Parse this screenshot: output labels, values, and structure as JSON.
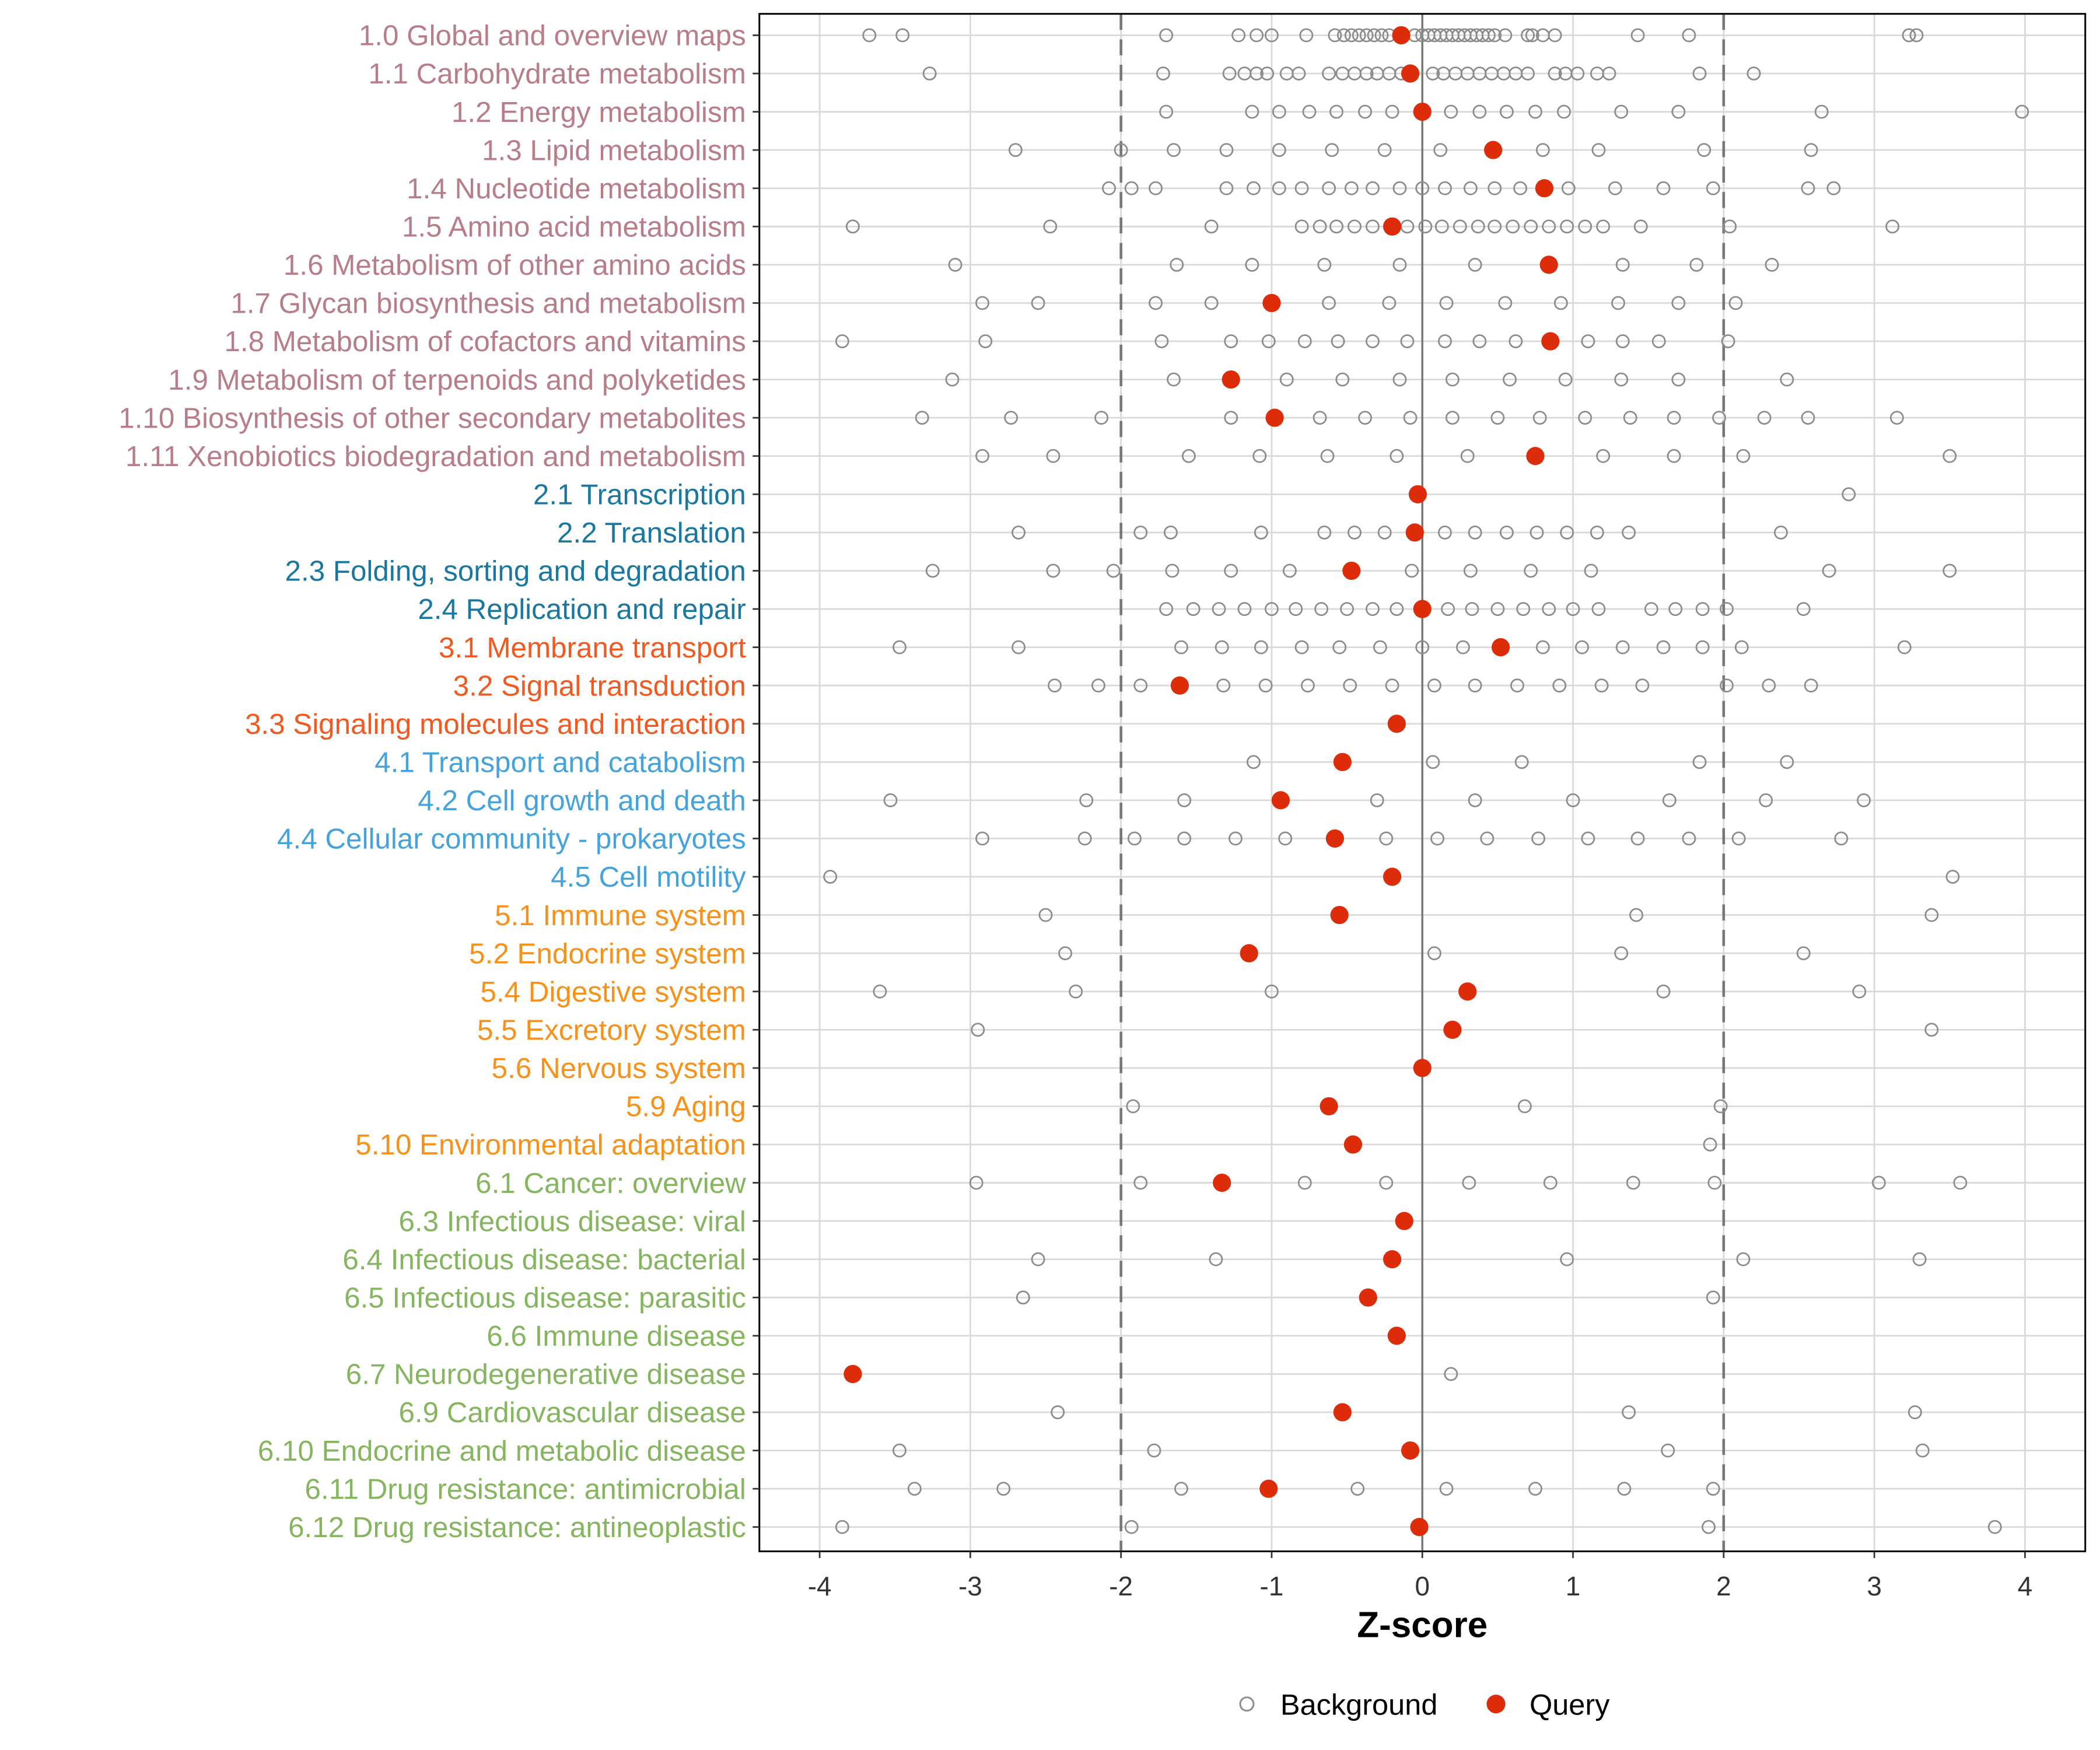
{
  "chart_data": {
    "type": "scatter",
    "xlabel": "Z-score",
    "ylabel": "",
    "xlim": [
      -4.5,
      4.3
    ],
    "xticks": [
      "-4",
      "-3",
      "-2",
      "-1",
      "0",
      "1",
      "2",
      "3",
      "4"
    ],
    "xtick_values": [
      -4,
      -3,
      -2,
      -1,
      0,
      1,
      2,
      3,
      4
    ],
    "reference_lines": {
      "dashed": [
        -2,
        2
      ],
      "solid": [
        0
      ]
    },
    "grid": true,
    "legend": {
      "placement": "bottom",
      "entries": [
        "Background",
        "Query"
      ]
    },
    "colors": {
      "background_point": "#8c8c8c",
      "query_point": "#dd2c0a",
      "groups": {
        "metabolism": "#b77d88",
        "genetic": "#1a77a0",
        "environmental": "#f2581f",
        "cellular": "#45a3dc",
        "organismal": "#f7911a",
        "disease": "#86b560"
      }
    },
    "categories": [
      {
        "label": "1.0 Global and overview maps",
        "group": "metabolism",
        "query": -0.14,
        "background": [
          -3.67,
          -3.45,
          -1.7,
          -1.22,
          -1.1,
          -1.0,
          -0.77,
          -0.58,
          -0.52,
          -0.47,
          -0.42,
          -0.37,
          -0.32,
          -0.27,
          -0.22,
          -0.05,
          0.0,
          0.04,
          0.08,
          0.12,
          0.16,
          0.2,
          0.24,
          0.28,
          0.32,
          0.36,
          0.4,
          0.44,
          0.48,
          0.55,
          0.7,
          0.73,
          0.8,
          0.88,
          1.43,
          1.77,
          3.23,
          3.28
        ]
      },
      {
        "label": "1.1 Carbohydrate metabolism",
        "group": "metabolism",
        "query": -0.08,
        "background": [
          -3.27,
          -1.72,
          -1.28,
          -1.18,
          -1.1,
          -1.03,
          -0.9,
          -0.82,
          -0.62,
          -0.53,
          -0.45,
          -0.37,
          -0.3,
          -0.22,
          -0.14,
          0.07,
          0.14,
          0.22,
          0.3,
          0.38,
          0.46,
          0.54,
          0.62,
          0.7,
          0.88,
          0.95,
          1.03,
          1.16,
          1.24,
          1.84,
          2.2
        ]
      },
      {
        "label": "1.2 Energy metabolism",
        "group": "metabolism",
        "query": 0.0,
        "background": [
          -1.7,
          -1.13,
          -0.95,
          -0.75,
          -0.57,
          -0.38,
          -0.2,
          0.19,
          0.38,
          0.56,
          0.75,
          0.94,
          1.32,
          1.7,
          2.65,
          3.98
        ]
      },
      {
        "label": "1.3 Lipid metabolism",
        "group": "metabolism",
        "query": 0.47,
        "background": [
          -2.7,
          -2.0,
          -1.65,
          -1.3,
          -0.95,
          -0.6,
          -0.25,
          0.12,
          0.8,
          1.17,
          1.87,
          2.58
        ]
      },
      {
        "label": "1.4 Nucleotide metabolism",
        "group": "metabolism",
        "query": 0.81,
        "background": [
          -2.08,
          -1.93,
          -1.77,
          -1.3,
          -1.12,
          -0.95,
          -0.8,
          -0.62,
          -0.47,
          -0.33,
          -0.15,
          0.0,
          0.15,
          0.32,
          0.48,
          0.65,
          0.97,
          1.28,
          1.6,
          1.93,
          2.56,
          2.73
        ]
      },
      {
        "label": "1.5 Amino acid metabolism",
        "group": "metabolism",
        "query": -0.2,
        "background": [
          -3.78,
          -2.47,
          -1.4,
          -0.8,
          -0.68,
          -0.57,
          -0.45,
          -0.33,
          -0.1,
          0.02,
          0.13,
          0.25,
          0.37,
          0.48,
          0.6,
          0.72,
          0.84,
          0.96,
          1.08,
          1.2,
          1.45,
          2.04,
          3.12
        ]
      },
      {
        "label": "1.6 Metabolism of other amino acids",
        "group": "metabolism",
        "query": 0.84,
        "background": [
          -3.1,
          -1.63,
          -1.13,
          -0.65,
          -0.15,
          0.35,
          1.33,
          1.82,
          2.32
        ]
      },
      {
        "label": "1.7 Glycan biosynthesis and metabolism",
        "group": "metabolism",
        "query": -1.0,
        "background": [
          -2.92,
          -2.55,
          -1.77,
          -1.4,
          -0.62,
          -0.22,
          0.16,
          0.55,
          0.92,
          1.3,
          1.7,
          2.08
        ]
      },
      {
        "label": "1.8 Metabolism of cofactors and vitamins",
        "group": "metabolism",
        "query": 0.85,
        "background": [
          -3.85,
          -2.9,
          -1.73,
          -1.27,
          -1.02,
          -0.78,
          -0.56,
          -0.33,
          -0.1,
          0.15,
          0.38,
          0.62,
          1.1,
          1.33,
          1.57,
          2.03
        ]
      },
      {
        "label": "1.9 Metabolism of terpenoids and polyketides",
        "group": "metabolism",
        "query": -1.27,
        "background": [
          -3.12,
          -1.65,
          -0.9,
          -0.53,
          -0.15,
          0.2,
          0.58,
          0.95,
          1.32,
          1.7,
          2.42
        ]
      },
      {
        "label": "1.10 Biosynthesis of other secondary metabolites",
        "group": "metabolism",
        "query": -0.98,
        "background": [
          -3.32,
          -2.73,
          -2.13,
          -1.27,
          -0.68,
          -0.38,
          -0.08,
          0.2,
          0.5,
          0.78,
          1.08,
          1.38,
          1.67,
          1.97,
          2.27,
          2.56,
          3.15
        ]
      },
      {
        "label": "1.11 Xenobiotics biodegradation and metabolism",
        "group": "metabolism",
        "query": 0.75,
        "background": [
          -2.92,
          -2.45,
          -1.55,
          -1.08,
          -0.63,
          -0.17,
          0.3,
          1.2,
          1.67,
          2.13,
          3.5
        ]
      },
      {
        "label": "2.1 Transcription",
        "group": "genetic",
        "query": -0.03,
        "background": [
          2.83
        ]
      },
      {
        "label": "2.2 Translation",
        "group": "genetic",
        "query": -0.05,
        "background": [
          -2.68,
          -1.87,
          -1.67,
          -1.07,
          -0.65,
          -0.45,
          -0.25,
          0.15,
          0.35,
          0.56,
          0.76,
          0.96,
          1.16,
          1.37,
          2.38
        ]
      },
      {
        "label": "2.3 Folding, sorting and degradation",
        "group": "genetic",
        "query": -0.47,
        "background": [
          -3.25,
          -2.45,
          -2.05,
          -1.66,
          -1.27,
          -0.88,
          -0.07,
          0.32,
          0.72,
          1.12,
          2.7,
          3.5
        ]
      },
      {
        "label": "2.4 Replication and repair",
        "group": "genetic",
        "query": 0.0,
        "background": [
          -1.7,
          -1.52,
          -1.35,
          -1.18,
          -1.0,
          -0.84,
          -0.67,
          -0.5,
          -0.33,
          -0.17,
          0.17,
          0.33,
          0.5,
          0.67,
          0.84,
          1.0,
          1.17,
          1.52,
          1.68,
          1.86,
          2.02,
          2.53
        ]
      },
      {
        "label": "3.1 Membrane transport",
        "group": "environmental",
        "query": 0.52,
        "background": [
          -3.47,
          -2.68,
          -1.6,
          -1.33,
          -1.07,
          -0.8,
          -0.55,
          -0.28,
          0.0,
          0.27,
          0.8,
          1.06,
          1.33,
          1.6,
          1.86,
          2.12,
          3.2
        ]
      },
      {
        "label": "3.2 Signal transduction",
        "group": "environmental",
        "query": -1.61,
        "background": [
          -2.44,
          -2.15,
          -1.87,
          -1.32,
          -1.04,
          -0.76,
          -0.48,
          -0.2,
          0.08,
          0.35,
          0.63,
          0.91,
          1.19,
          1.46,
          2.02,
          2.3,
          2.58
        ]
      },
      {
        "label": "3.3 Signaling molecules and interaction",
        "group": "environmental",
        "query": -0.17,
        "background": []
      },
      {
        "label": "4.1 Transport and catabolism",
        "group": "cellular",
        "query": -0.53,
        "background": [
          -1.12,
          0.07,
          0.66,
          1.84,
          2.42
        ]
      },
      {
        "label": "4.2 Cell growth and death",
        "group": "cellular",
        "query": -0.94,
        "background": [
          -3.53,
          -2.23,
          -1.58,
          -0.3,
          0.35,
          1.0,
          1.64,
          2.28,
          2.93
        ]
      },
      {
        "label": "4.4 Cellular community - prokaryotes",
        "group": "cellular",
        "query": -0.58,
        "background": [
          -2.92,
          -2.24,
          -1.91,
          -1.58,
          -1.24,
          -0.91,
          -0.24,
          0.1,
          0.43,
          0.77,
          1.1,
          1.43,
          1.77,
          2.1,
          2.78
        ]
      },
      {
        "label": "4.5 Cell motility",
        "group": "cellular",
        "query": -0.2,
        "background": [
          -3.93,
          3.52
        ]
      },
      {
        "label": "5.1 Immune system",
        "group": "organismal",
        "query": -0.55,
        "background": [
          -2.5,
          1.42,
          3.38
        ]
      },
      {
        "label": "5.2 Endocrine system",
        "group": "organismal",
        "query": -1.15,
        "background": [
          -2.37,
          0.08,
          1.32,
          2.53
        ]
      },
      {
        "label": "5.4 Digestive system",
        "group": "organismal",
        "query": 0.3,
        "background": [
          -3.6,
          -2.3,
          -1.0,
          1.6,
          2.9
        ]
      },
      {
        "label": "5.5 Excretory system",
        "group": "organismal",
        "query": 0.2,
        "background": [
          -2.95,
          3.38
        ]
      },
      {
        "label": "5.6 Nervous system",
        "group": "organismal",
        "query": 0.0,
        "background": []
      },
      {
        "label": "5.9 Aging",
        "group": "organismal",
        "query": -0.62,
        "background": [
          -1.92,
          0.68,
          1.98
        ]
      },
      {
        "label": "5.10 Environmental adaptation",
        "group": "organismal",
        "query": -0.46,
        "background": [
          1.91
        ]
      },
      {
        "label": "6.1 Cancer: overview",
        "group": "disease",
        "query": -1.33,
        "background": [
          -2.96,
          -1.87,
          -0.78,
          -0.24,
          0.31,
          0.85,
          1.4,
          1.94,
          3.03,
          3.57
        ]
      },
      {
        "label": "6.3 Infectious disease: viral",
        "group": "disease",
        "query": -0.12,
        "background": []
      },
      {
        "label": "6.4 Infectious disease: bacterial",
        "group": "disease",
        "query": -0.2,
        "background": [
          -2.55,
          -1.37,
          0.96,
          2.13,
          3.3
        ]
      },
      {
        "label": "6.5 Infectious disease: parasitic",
        "group": "disease",
        "query": -0.36,
        "background": [
          -2.65,
          1.93
        ]
      },
      {
        "label": "6.6 Immune disease",
        "group": "disease",
        "query": -0.17,
        "background": []
      },
      {
        "label": "6.7 Neurodegenerative disease",
        "group": "disease",
        "query": -3.78,
        "background": [
          0.19
        ]
      },
      {
        "label": "6.9 Cardiovascular disease",
        "group": "disease",
        "query": -0.53,
        "background": [
          -2.42,
          1.37,
          3.27
        ]
      },
      {
        "label": "6.10 Endocrine and metabolic disease",
        "group": "disease",
        "query": -0.08,
        "background": [
          -3.47,
          -1.78,
          1.63,
          3.32
        ]
      },
      {
        "label": "6.11 Drug resistance: antimicrobial",
        "group": "disease",
        "query": -1.02,
        "background": [
          -3.37,
          -2.78,
          -1.6,
          -0.43,
          0.16,
          0.75,
          1.34,
          1.93
        ]
      },
      {
        "label": "6.12 Drug resistance: antineoplastic",
        "group": "disease",
        "query": -0.02,
        "background": [
          -3.85,
          -1.93,
          1.9,
          3.8
        ]
      }
    ]
  }
}
